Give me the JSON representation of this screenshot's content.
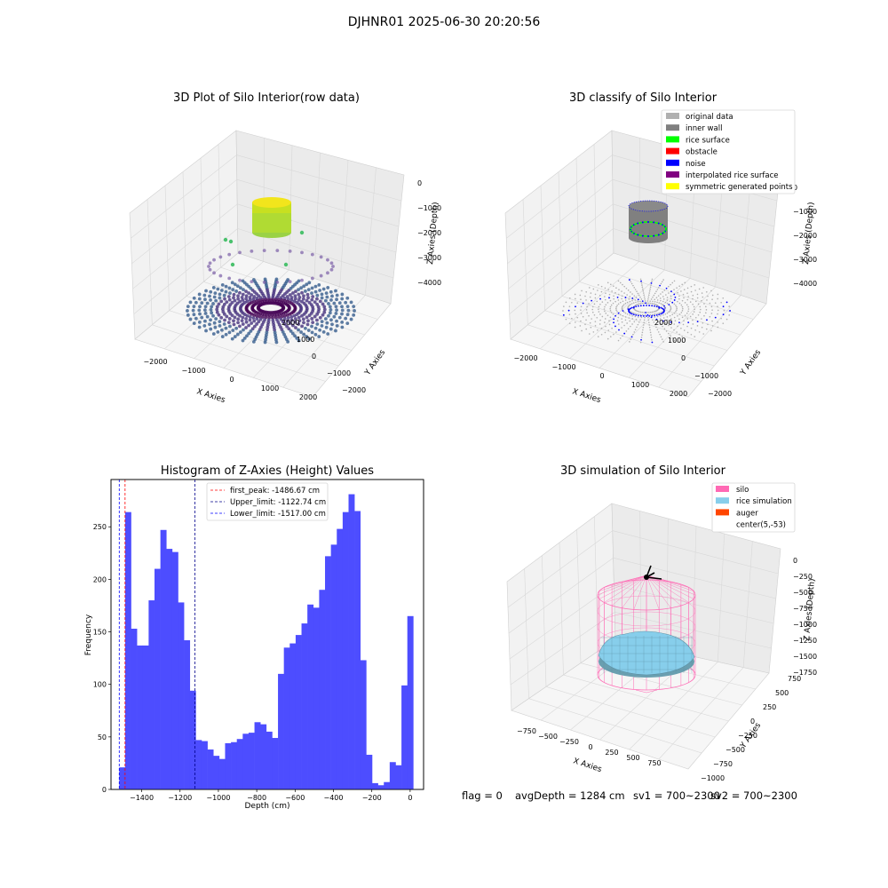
{
  "figure": {
    "title": "DJHNR01 2025-06-30 20:20:56"
  },
  "panels": {
    "raw": {
      "title": "3D Plot of Silo Interior(row data)",
      "xlabel": "X Axies",
      "ylabel": "Y Axies",
      "zlabel": "Z Axies (Depth)",
      "x_ticks": [
        "−2000",
        "−1000",
        "0",
        "1000",
        "2000"
      ],
      "y_ticks": [
        "−2000",
        "−1000",
        "0",
        "1000",
        "2000"
      ],
      "z_ticks": [
        "0",
        "−1000",
        "−2000",
        "−3000",
        "−4000"
      ]
    },
    "classify": {
      "title": "3D classify of Silo Interior",
      "xlabel": "X Axies",
      "ylabel": "Y Axies",
      "zlabel": "Z Axies (Depth)",
      "x_ticks": [
        "−2000",
        "−1000",
        "0",
        "1000",
        "2000"
      ],
      "y_ticks": [
        "−2000",
        "−1000",
        "0",
        "1000",
        "2000"
      ],
      "z_ticks": [
        "0",
        "−1000",
        "−2000",
        "−3000",
        "−4000"
      ],
      "legend": [
        {
          "label": "original data",
          "color": "#b0b0b0"
        },
        {
          "label": "inner wall",
          "color": "#808080"
        },
        {
          "label": "rice surface",
          "color": "#00ff00"
        },
        {
          "label": "obstacle",
          "color": "#ff0000"
        },
        {
          "label": "noise",
          "color": "#0000ff"
        },
        {
          "label": "interpolated rice surface",
          "color": "#800080"
        },
        {
          "label": "symmetric generated points",
          "color": "#ffff00"
        }
      ]
    },
    "simulation": {
      "title": "3D simulation of Silo Interior",
      "xlabel": "X Axies",
      "ylabel": "Y Axies",
      "zlabel": "Z Axies (Depth)",
      "x_ticks": [
        "−750",
        "−500",
        "−250",
        "0",
        "250",
        "500",
        "750"
      ],
      "y_ticks": [
        "−1000",
        "−750",
        "−500",
        "−250",
        "0",
        "250",
        "500",
        "750"
      ],
      "z_ticks": [
        "0",
        "−250",
        "−500",
        "−750",
        "−1000",
        "−1250",
        "−1500",
        "−1750"
      ],
      "legend": [
        {
          "label": "silo",
          "color": "#ff69b4"
        },
        {
          "label": "rice simulation",
          "color": "#87ceeb"
        },
        {
          "label": "auger",
          "color": "#ff4500"
        },
        {
          "label": "center(5,-53)",
          "color": ""
        }
      ]
    }
  },
  "chart_data": {
    "type": "bar",
    "title": "Histogram of Z-Axies (Height) Values",
    "xlabel": "Depth (cm)",
    "ylabel": "Frequency",
    "xlim": [
      -1560,
      70
    ],
    "ylim": [
      0,
      295
    ],
    "x_ticks": [
      -1400,
      -1200,
      -1000,
      -800,
      -600,
      -400,
      -200,
      0
    ],
    "y_ticks": [
      0,
      50,
      100,
      150,
      200,
      250
    ],
    "x_tick_labels": [
      "−1400",
      "−1200",
      "−1000",
      "−800",
      "−600",
      "−400",
      "−200",
      "0"
    ],
    "y_tick_labels": [
      "0",
      "50",
      "100",
      "150",
      "200",
      "250"
    ],
    "bar_color": "#4d4dff",
    "bin_width": 30.66,
    "bin_start": -1517.0,
    "values": [
      21,
      264,
      153,
      137,
      137,
      180,
      210,
      247,
      229,
      226,
      178,
      142,
      94,
      47,
      46,
      38,
      32,
      29,
      44,
      45,
      48,
      53,
      54,
      64,
      62,
      55,
      49,
      110,
      135,
      139,
      147,
      158,
      176,
      173,
      190,
      222,
      233,
      248,
      264,
      281,
      265,
      123,
      33,
      6,
      4,
      7,
      26,
      23,
      99,
      165
    ],
    "lines": [
      {
        "label": "first_peak: -1486.67 cm",
        "value": -1486.67,
        "color": "#ff0000"
      },
      {
        "label": "Upper_limit: -1122.74 cm",
        "value": -1122.74,
        "color": "#00008b"
      },
      {
        "label": "Lower_limit: -1517.00 cm",
        "value": -1517.0,
        "color": "#0000ff"
      }
    ]
  },
  "status": {
    "flag": "flag = 0",
    "avg_depth": "avgDepth = 1284 cm",
    "sv1": "sv1 = 700~2300",
    "sv2": "sv2 = 700~2300"
  }
}
